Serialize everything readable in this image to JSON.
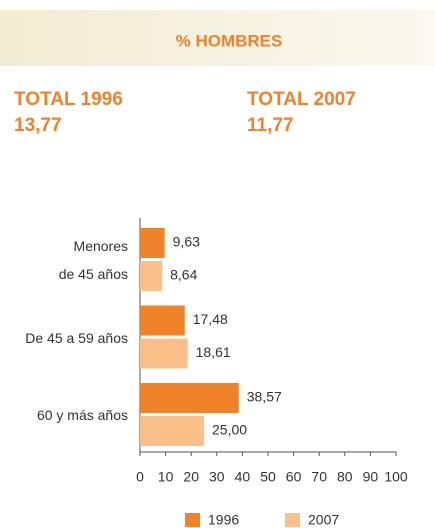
{
  "header": {
    "title": "% HOMBRES"
  },
  "totals": [
    {
      "label": "TOTAL 1996",
      "value": "13,77"
    },
    {
      "label": "TOTAL 2007",
      "value": "11,77"
    }
  ],
  "chart_data": {
    "type": "hbar",
    "categories": [
      "Menores\nde 45 años",
      "De 45 a 59 años",
      "60 y más años"
    ],
    "series": [
      {
        "name": "1996",
        "color": "#f0832a",
        "values": [
          9.63,
          17.48,
          38.57
        ],
        "value_labels": [
          "9,63",
          "17,48",
          "38,57"
        ]
      },
      {
        "name": "2007",
        "color": "#fbbf8a",
        "values": [
          8.64,
          18.61,
          25.0
        ],
        "value_labels": [
          "8,64",
          "18,61",
          "25,00"
        ]
      }
    ],
    "xlim": [
      0,
      100
    ],
    "xticks": [
      0,
      10,
      20,
      30,
      40,
      50,
      60,
      70,
      80,
      90,
      100
    ]
  }
}
